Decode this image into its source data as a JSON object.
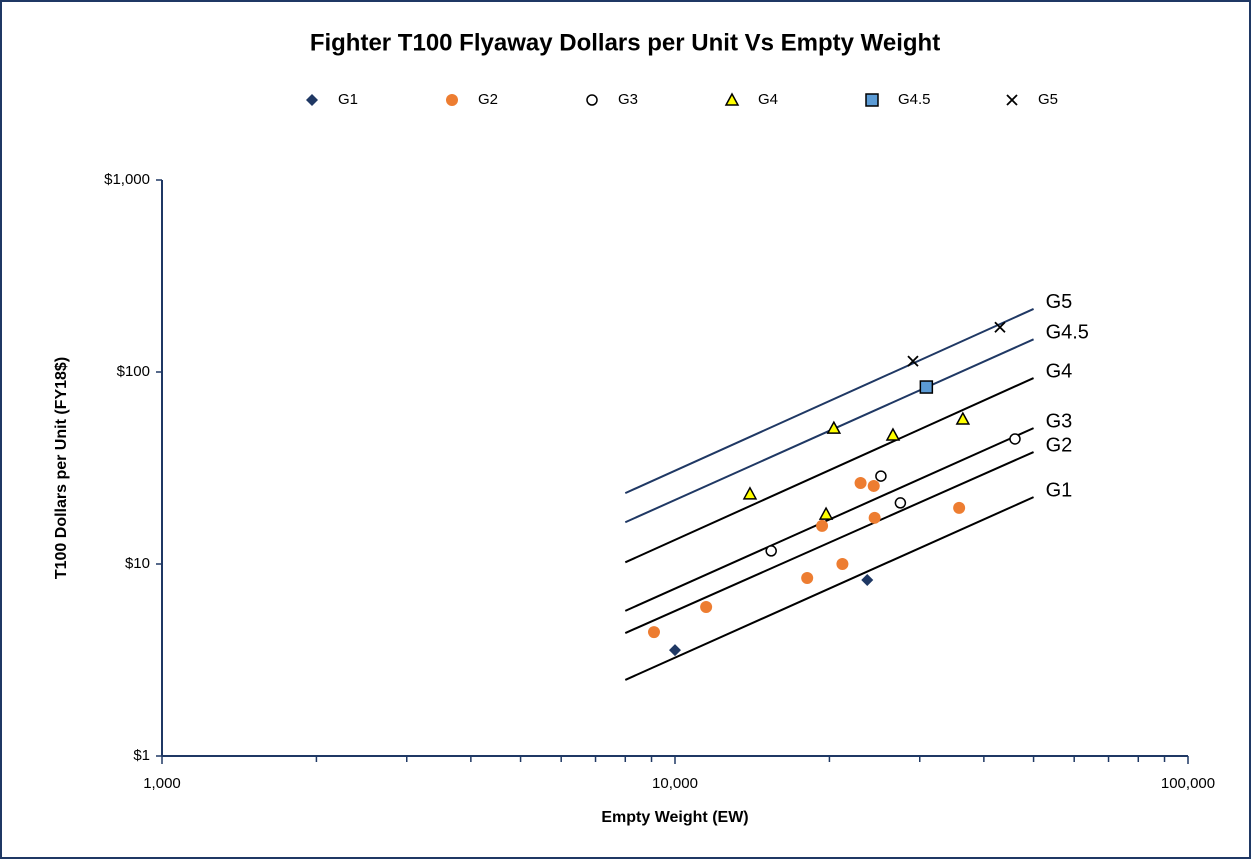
{
  "chart_data": {
    "type": "scatter",
    "title": "Fighter T100 Flyaway Dollars per Unit Vs Empty Weight",
    "x_label": "Empty Weight (EW)",
    "y_label": "T100 Dollars per Unit (FY18$)",
    "log_x": true,
    "log_y": true,
    "legend": "top",
    "xlim": [
      1000,
      100000
    ],
    "xticks": [
      {
        "value": 1000,
        "label": "1,000"
      },
      {
        "value": 10000,
        "label": "10,000"
      },
      {
        "value": 100000,
        "label": "100,000"
      }
    ],
    "ylim": [
      1,
      1000
    ],
    "yticks": [
      {
        "value": 1,
        "label": "$1"
      },
      {
        "value": 10,
        "label": "$10"
      },
      {
        "value": 100,
        "label": "$100"
      },
      {
        "value": 1000,
        "label": "$1,000"
      }
    ],
    "series": [
      {
        "name": "G1",
        "marker": "diamond",
        "color": "#1f3864",
        "x": [
          10000,
          23700
        ],
        "values": [
          3.56,
          8.26
        ]
      },
      {
        "name": "G2",
        "marker": "circle",
        "color": "#ed7d31",
        "x": [
          9100,
          11500,
          18100,
          21200,
          19350,
          23000,
          24400,
          24500,
          35800
        ],
        "values": [
          4.42,
          5.97,
          8.45,
          10,
          15.8,
          26.4,
          25.5,
          17.4,
          19.6
        ]
      },
      {
        "name": "G3",
        "marker": "open-circle",
        "color": "#000000",
        "x": [
          15400,
          25200,
          27500,
          46000
        ],
        "values": [
          11.7,
          28.7,
          20.8,
          44.8
        ]
      },
      {
        "name": "G4",
        "marker": "triangle",
        "color": "#ffff00",
        "x": [
          14000,
          19700,
          20400,
          26600,
          36400
        ],
        "values": [
          23.2,
          18.2,
          51,
          47,
          56.9
        ]
      },
      {
        "name": "G4.5",
        "marker": "square",
        "color": "#5b9bd5",
        "x": [
          30900
        ],
        "values": [
          83.5
        ]
      },
      {
        "name": "G5",
        "marker": "x",
        "color": "#000000",
        "x": [
          29100,
          43000
        ],
        "values": [
          114,
          171
        ]
      }
    ],
    "trend_lines": [
      {
        "label": "G5",
        "color": "#1f3864",
        "x": [
          8000,
          50000
        ],
        "values": [
          23.4,
          213
        ]
      },
      {
        "label": "G4.5",
        "color": "#1f3864",
        "x": [
          8000,
          50000
        ],
        "values": [
          16.5,
          148
        ]
      },
      {
        "label": "G4",
        "color": "#000000",
        "x": [
          8000,
          50000
        ],
        "values": [
          10.2,
          93
        ]
      },
      {
        "label": "G3",
        "color": "#000000",
        "x": [
          8000,
          50000
        ],
        "values": [
          5.7,
          51
        ]
      },
      {
        "label": "G2",
        "color": "#000000",
        "x": [
          8000,
          50000
        ],
        "values": [
          4.37,
          38.3
        ]
      },
      {
        "label": "G1",
        "color": "#000000",
        "x": [
          8000,
          50000
        ],
        "values": [
          2.49,
          22.3
        ]
      }
    ]
  }
}
